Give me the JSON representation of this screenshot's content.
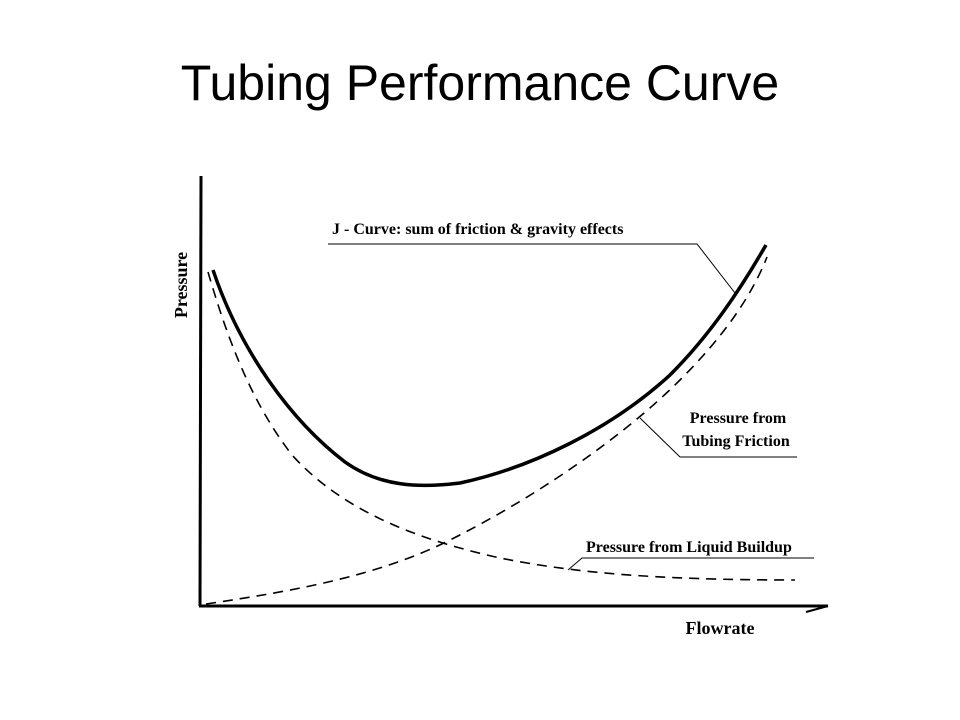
{
  "slide": {
    "title": "Tubing Performance Curve"
  },
  "diagram": {
    "y_axis_label": "Pressure",
    "x_axis_label": "Flowrate",
    "annotations": {
      "j_curve": "J - Curve: sum of friction & gravity effects",
      "friction_line1": "Pressure from",
      "friction_line2": "Tubing Friction",
      "liquid_buildup": "Pressure from Liquid Buildup"
    },
    "colors": {
      "ink": "#000000",
      "background": "#ffffff"
    }
  }
}
